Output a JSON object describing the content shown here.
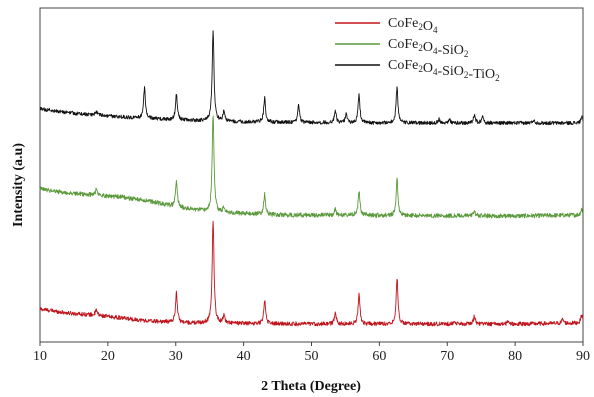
{
  "chart_data": {
    "type": "line",
    "title": "",
    "xlabel": "2 Theta (Degree)",
    "ylabel": "Intensity (a.u)",
    "xlim": [
      10,
      90
    ],
    "x_ticks": [
      "10",
      "20",
      "30",
      "40",
      "50",
      "60",
      "70",
      "80",
      "90"
    ],
    "y_ticks_shown": false,
    "grid": false,
    "legend_position": "top-right",
    "series": [
      {
        "name": "CoFe2O4",
        "legend_parts": [
          [
            "CoFe",
            ""
          ],
          [
            "2",
            "sub"
          ],
          [
            "O",
            ""
          ],
          [
            "4",
            "sub"
          ]
        ],
        "color": "#c0141c",
        "offset": 0,
        "noise": 2.0,
        "baseline": [
          [
            10,
            18
          ],
          [
            14,
            14
          ],
          [
            18,
            12
          ],
          [
            22,
            9
          ],
          [
            26,
            6
          ],
          [
            32,
            4
          ],
          [
            50,
            3
          ],
          [
            80,
            3
          ],
          [
            90,
            4
          ]
        ],
        "peaks": [
          [
            18.3,
            5
          ],
          [
            30.1,
            30
          ],
          [
            35.5,
            102
          ],
          [
            37.1,
            8
          ],
          [
            43.1,
            24
          ],
          [
            53.5,
            11
          ],
          [
            57.0,
            30
          ],
          [
            62.6,
            46
          ],
          [
            71.0,
            3
          ],
          [
            74.0,
            8
          ],
          [
            79.0,
            3
          ],
          [
            87.0,
            4
          ],
          [
            89.8,
            8
          ]
        ]
      },
      {
        "name": "CoFe2O4-SiO2",
        "legend_parts": [
          [
            "CoFe",
            ""
          ],
          [
            "2",
            "sub"
          ],
          [
            "O",
            ""
          ],
          [
            "4",
            "sub"
          ],
          [
            "-SiO",
            ""
          ],
          [
            "2",
            "sub"
          ]
        ],
        "color": "#5b9a3c",
        "offset": 108,
        "noise": 2.2,
        "baseline": [
          [
            10,
            30
          ],
          [
            14,
            26
          ],
          [
            18,
            24
          ],
          [
            22,
            22
          ],
          [
            26,
            18
          ],
          [
            30,
            12
          ],
          [
            35,
            7
          ],
          [
            45,
            4
          ],
          [
            80,
            3
          ],
          [
            90,
            4
          ]
        ],
        "peaks": [
          [
            18.3,
            6
          ],
          [
            30.1,
            26
          ],
          [
            35.5,
            98
          ],
          [
            37.1,
            6
          ],
          [
            43.1,
            20
          ],
          [
            53.5,
            6
          ],
          [
            57.0,
            24
          ],
          [
            62.6,
            36
          ],
          [
            74.0,
            5
          ],
          [
            89.8,
            6
          ]
        ]
      },
      {
        "name": "CoFe2O4-SiO2-TiO2",
        "legend_parts": [
          [
            "CoFe",
            ""
          ],
          [
            "2",
            "sub"
          ],
          [
            "O",
            ""
          ],
          [
            "4",
            "sub"
          ],
          [
            "-SiO",
            ""
          ],
          [
            "2",
            "sub"
          ],
          [
            "-TiO",
            ""
          ],
          [
            "2",
            "sub"
          ]
        ],
        "color": "#111111",
        "offset": 200,
        "noise": 1.8,
        "baseline": [
          [
            10,
            18
          ],
          [
            16,
            13
          ],
          [
            22,
            10
          ],
          [
            30,
            7
          ],
          [
            40,
            5
          ],
          [
            60,
            4
          ],
          [
            90,
            4
          ]
        ],
        "peaks": [
          [
            18.3,
            4
          ],
          [
            25.4,
            30
          ],
          [
            30.1,
            26
          ],
          [
            35.5,
            90
          ],
          [
            37.1,
            10
          ],
          [
            43.1,
            24
          ],
          [
            48.1,
            18
          ],
          [
            53.5,
            12
          ],
          [
            55.1,
            8
          ],
          [
            57.0,
            28
          ],
          [
            62.6,
            36
          ],
          [
            68.8,
            4
          ],
          [
            70.3,
            4
          ],
          [
            74.0,
            8
          ],
          [
            75.2,
            6
          ],
          [
            82.7,
            3
          ],
          [
            89.8,
            6
          ]
        ]
      }
    ]
  }
}
